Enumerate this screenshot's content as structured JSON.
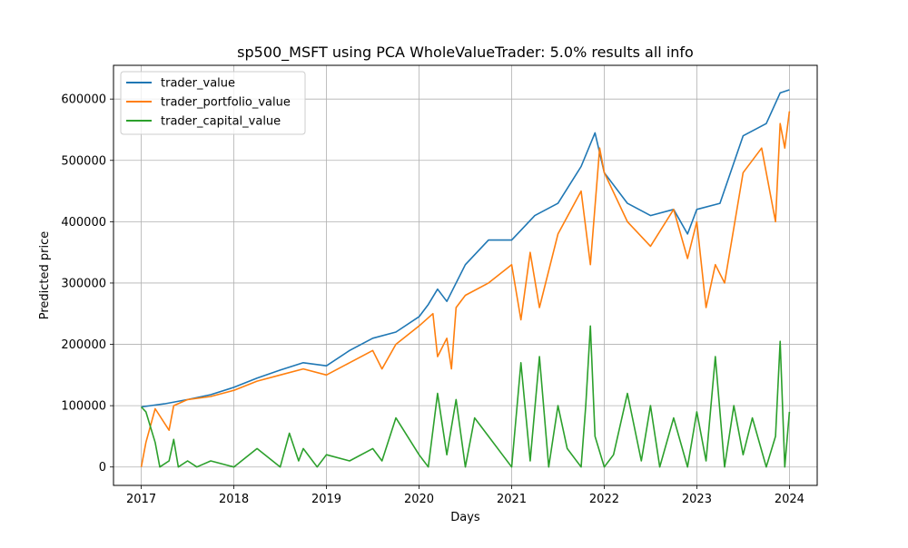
{
  "chart_data": {
    "type": "line",
    "title": "sp500_MSFT using PCA WholeValueTrader: 5.0% results all info",
    "xlabel": "Days",
    "ylabel": "Predicted price",
    "xlim": [
      2016.7,
      2024.3
    ],
    "ylim": [
      -30000,
      655000
    ],
    "x_ticks": [
      2017,
      2018,
      2019,
      2020,
      2021,
      2022,
      2023,
      2024
    ],
    "x_tick_labels": [
      "2017",
      "2018",
      "2019",
      "2020",
      "2021",
      "2022",
      "2023",
      "2024"
    ],
    "y_ticks": [
      0,
      100000,
      200000,
      300000,
      400000,
      500000,
      600000
    ],
    "y_tick_labels": [
      "0",
      "100000",
      "200000",
      "300000",
      "400000",
      "500000",
      "600000"
    ],
    "grid": true,
    "legend_position": "top-left",
    "series": [
      {
        "name": "trader_value",
        "color": "#1f77b4",
        "x": [
          2017.0,
          2017.25,
          2017.5,
          2017.75,
          2018.0,
          2018.25,
          2018.5,
          2018.75,
          2019.0,
          2019.25,
          2019.5,
          2019.75,
          2020.0,
          2020.1,
          2020.2,
          2020.3,
          2020.5,
          2020.75,
          2021.0,
          2021.25,
          2021.5,
          2021.75,
          2021.9,
          2022.0,
          2022.25,
          2022.5,
          2022.75,
          2022.9,
          2023.0,
          2023.25,
          2023.5,
          2023.75,
          2023.9,
          2024.0
        ],
        "y": [
          98000,
          103000,
          110000,
          118000,
          130000,
          145000,
          158000,
          170000,
          165000,
          190000,
          210000,
          220000,
          245000,
          265000,
          290000,
          270000,
          330000,
          370000,
          370000,
          410000,
          430000,
          490000,
          545000,
          480000,
          430000,
          410000,
          420000,
          380000,
          420000,
          430000,
          540000,
          560000,
          610000,
          615000
        ]
      },
      {
        "name": "trader_portfolio_value",
        "color": "#ff7f0e",
        "x": [
          2017.0,
          2017.05,
          2017.15,
          2017.3,
          2017.35,
          2017.5,
          2017.75,
          2018.0,
          2018.25,
          2018.5,
          2018.75,
          2019.0,
          2019.25,
          2019.5,
          2019.6,
          2019.75,
          2020.0,
          2020.15,
          2020.2,
          2020.3,
          2020.35,
          2020.4,
          2020.5,
          2020.75,
          2021.0,
          2021.1,
          2021.2,
          2021.3,
          2021.5,
          2021.75,
          2021.85,
          2021.95,
          2022.0,
          2022.25,
          2022.5,
          2022.75,
          2022.9,
          2023.0,
          2023.1,
          2023.2,
          2023.3,
          2023.5,
          2023.7,
          2023.85,
          2023.9,
          2023.95,
          2024.0
        ],
        "y": [
          0,
          40000,
          95000,
          60000,
          100000,
          110000,
          115000,
          125000,
          140000,
          150000,
          160000,
          150000,
          170000,
          190000,
          160000,
          200000,
          230000,
          250000,
          180000,
          210000,
          160000,
          260000,
          280000,
          300000,
          330000,
          240000,
          350000,
          260000,
          380000,
          450000,
          330000,
          520000,
          480000,
          400000,
          360000,
          420000,
          340000,
          400000,
          260000,
          330000,
          300000,
          480000,
          520000,
          400000,
          560000,
          520000,
          580000
        ]
      },
      {
        "name": "trader_capital_value",
        "color": "#2ca02c",
        "x": [
          2017.0,
          2017.05,
          2017.15,
          2017.2,
          2017.3,
          2017.35,
          2017.4,
          2017.5,
          2017.6,
          2017.75,
          2018.0,
          2018.25,
          2018.5,
          2018.6,
          2018.7,
          2018.75,
          2018.9,
          2019.0,
          2019.25,
          2019.5,
          2019.6,
          2019.75,
          2020.0,
          2020.1,
          2020.2,
          2020.3,
          2020.4,
          2020.5,
          2020.6,
          2020.75,
          2020.9,
          2021.0,
          2021.1,
          2021.2,
          2021.3,
          2021.4,
          2021.5,
          2021.6,
          2021.75,
          2021.8,
          2021.85,
          2021.9,
          2022.0,
          2022.1,
          2022.25,
          2022.4,
          2022.5,
          2022.6,
          2022.75,
          2022.9,
          2023.0,
          2023.1,
          2023.2,
          2023.3,
          2023.4,
          2023.5,
          2023.6,
          2023.75,
          2023.85,
          2023.9,
          2023.95,
          2024.0
        ],
        "y": [
          98000,
          90000,
          40000,
          0,
          10000,
          45000,
          0,
          10000,
          0,
          10000,
          0,
          30000,
          0,
          55000,
          10000,
          30000,
          0,
          20000,
          10000,
          30000,
          10000,
          80000,
          20000,
          0,
          120000,
          20000,
          110000,
          0,
          80000,
          50000,
          20000,
          0,
          170000,
          10000,
          180000,
          0,
          100000,
          30000,
          0,
          100000,
          230000,
          50000,
          0,
          20000,
          120000,
          10000,
          100000,
          0,
          80000,
          0,
          90000,
          10000,
          180000,
          0,
          100000,
          20000,
          80000,
          0,
          50000,
          205000,
          0,
          90000
        ]
      }
    ]
  }
}
